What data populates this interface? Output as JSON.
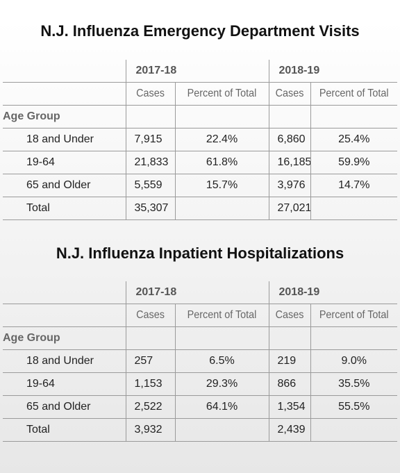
{
  "tables": [
    {
      "title": "N.J. Influenza Emergency Department Visits",
      "year1": "2017-18",
      "year2": "2018-19",
      "col_cases": "Cases",
      "col_percent": "Percent of Total",
      "age_group_label": "Age Group",
      "rows": [
        {
          "label": "18 and Under",
          "cases1": "7,915",
          "pct1": "22.4%",
          "cases2": "6,860",
          "pct2": "25.4%"
        },
        {
          "label": "19-64",
          "cases1": "21,833",
          "pct1": "61.8%",
          "cases2": "16,185",
          "pct2": "59.9%"
        },
        {
          "label": "65 and Older",
          "cases1": "5,559",
          "pct1": "15.7%",
          "cases2": "3,976",
          "pct2": "14.7%"
        },
        {
          "label": "Total",
          "cases1": "35,307",
          "pct1": "",
          "cases2": "27,021",
          "pct2": ""
        }
      ]
    },
    {
      "title": "N.J. Influenza Inpatient Hospitalizations",
      "year1": "2017-18",
      "year2": "2018-19",
      "col_cases": "Cases",
      "col_percent": "Percent of Total",
      "age_group_label": "Age Group",
      "rows": [
        {
          "label": "18 and Under",
          "cases1": "257",
          "pct1": "6.5%",
          "cases2": "219",
          "pct2": "9.0%"
        },
        {
          "label": "19-64",
          "cases1": "1,153",
          "pct1": "29.3%",
          "cases2": "866",
          "pct2": "35.5%"
        },
        {
          "label": "65 and Older",
          "cases1": "2,522",
          "pct1": "64.1%",
          "cases2": "1,354",
          "pct2": "55.5%"
        },
        {
          "label": "Total",
          "cases1": "3,932",
          "pct1": "",
          "cases2": "2,439",
          "pct2": ""
        }
      ]
    }
  ]
}
